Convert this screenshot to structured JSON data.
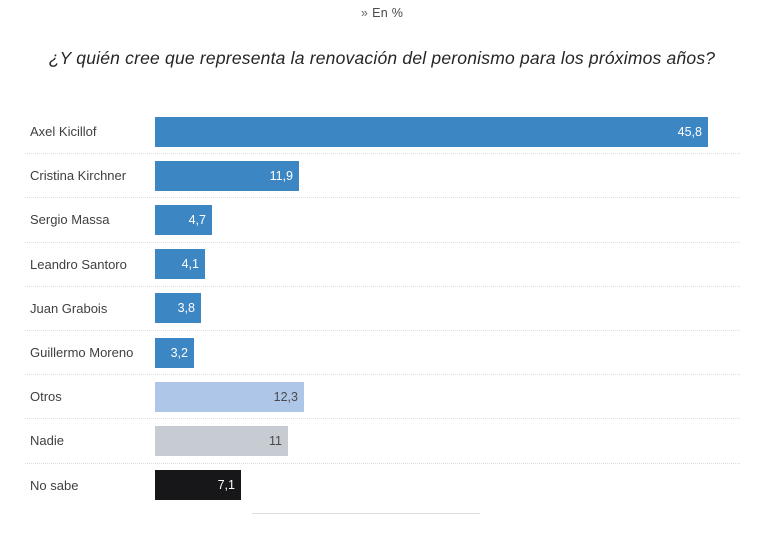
{
  "header": {
    "marker": "»",
    "unit_note": "En %"
  },
  "title": "¿Y quién cree que representa la renovación del peronismo para los próximos años?",
  "chart_data": {
    "type": "bar",
    "orientation": "horizontal",
    "title": "¿Y quién cree que representa la renovación del peronismo para los próximos años?",
    "unit": "En %",
    "categories": [
      "Axel Kicillof",
      "Cristina Kirchner",
      "Sergio Massa",
      "Leandro Santoro",
      "Juan Grabois",
      "Guillermo Moreno",
      "Otros",
      "Nadie",
      "No sabe"
    ],
    "values": [
      45.8,
      11.9,
      4.7,
      4.1,
      3.8,
      3.2,
      12.3,
      11,
      7.1
    ],
    "value_labels": [
      "45,8",
      "11,9",
      "4,7",
      "4,1",
      "3,8",
      "3,2",
      "12,3",
      "11",
      "7,1"
    ],
    "bar_colors": [
      "#3c86c3",
      "#3c86c3",
      "#3c86c3",
      "#3c86c3",
      "#3c86c3",
      "#3c86c3",
      "#aec6e8",
      "#c6ccd1",
      "#17171a"
    ],
    "value_text_colors": [
      "#ffffff",
      "#ffffff",
      "#ffffff",
      "#ffffff",
      "#ffffff",
      "#ffffff",
      "#4a4a4a",
      "#4a4a4a",
      "#ffffff"
    ],
    "xlim": [
      0,
      45.8
    ],
    "grid": false,
    "legend": "none",
    "row_separators": true
  }
}
